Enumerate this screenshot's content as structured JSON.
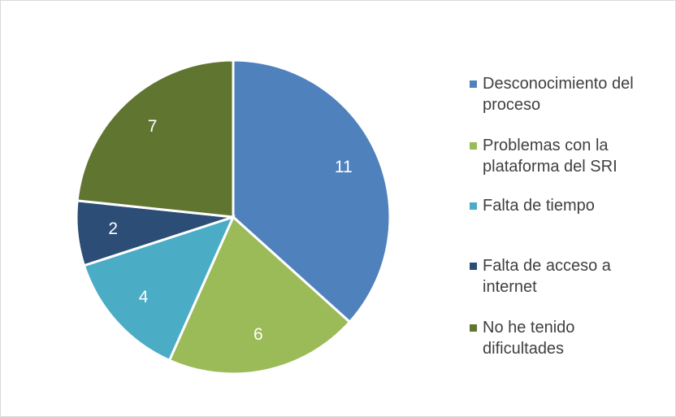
{
  "chart_data": {
    "type": "pie",
    "categories": [
      "Desconocimiento del proceso",
      "Problemas con la plataforma del SRI",
      "Falta de tiempo",
      "Falta de acceso a internet",
      "No he tenido dificultades"
    ],
    "values": [
      11,
      6,
      4,
      2,
      7
    ],
    "colors": [
      "#4f81bd",
      "#9bbb59",
      "#4bacc6",
      "#2c4d75",
      "#5f7530"
    ],
    "legend": "right"
  }
}
